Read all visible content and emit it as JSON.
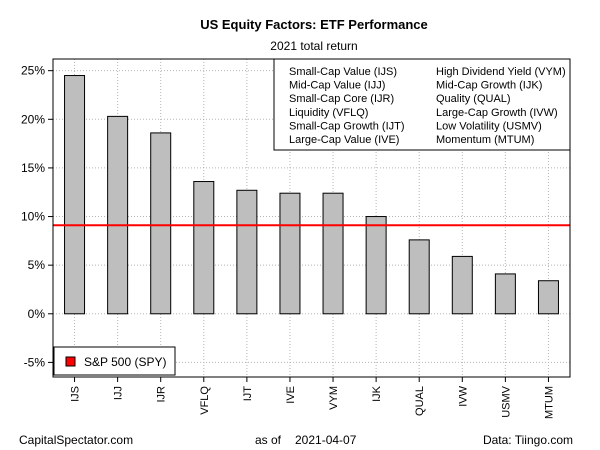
{
  "chart_data": {
    "type": "bar",
    "title": "US Equity Factors: ETF Performance",
    "subtitle": "2021 total return",
    "categories": [
      "IJS",
      "IJJ",
      "IJR",
      "VFLQ",
      "IJT",
      "IVE",
      "VYM",
      "IJK",
      "QUAL",
      "IVW",
      "USMV",
      "MTUM"
    ],
    "values": [
      24.5,
      20.3,
      18.6,
      13.6,
      12.7,
      12.4,
      12.4,
      10.0,
      7.6,
      5.9,
      4.1,
      3.4
    ],
    "ylim": [
      -6.5,
      26.2
    ],
    "yticks": [
      -5,
      0,
      5,
      10,
      15,
      20,
      25
    ],
    "ytick_labels": [
      "-5%",
      "0%",
      "5%",
      "10%",
      "15%",
      "20%",
      "25%"
    ],
    "reference_line": {
      "label": "S&P 500 (SPY)",
      "value": 9.1,
      "color": "#ff0000"
    },
    "bar_color": "#bebebe",
    "grid": true,
    "legend_placement": "bottom-left",
    "key": [
      "Small-Cap Value (IJS)",
      "High Dividend Yield (VYM)",
      "Mid-Cap Value (IJJ)",
      "Mid-Cap Growth (IJK)",
      "Small-Cap Core (IJR)",
      "Quality (QUAL)",
      "Liquidity (VFLQ)",
      "Large-Cap Growth (IVW)",
      "Small-Cap Growth (IJT)",
      "Low Volatility (USMV)",
      "Large-Cap Value (IVE)",
      "Momentum (MTUM)"
    ]
  },
  "footer": {
    "source_left": "CapitalSpectator.com",
    "as_of_label": "as of",
    "as_of_date": "2021-04-07",
    "source_right": "Data: Tiingo.com"
  }
}
